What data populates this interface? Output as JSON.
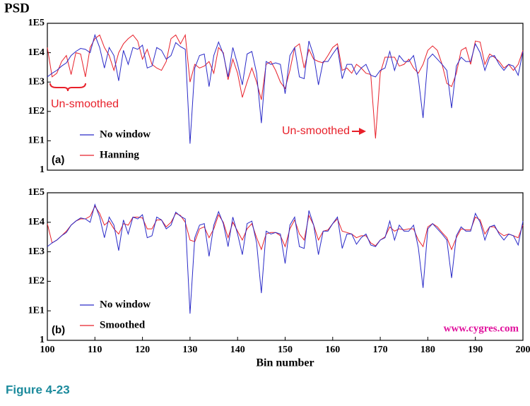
{
  "chart_data": [
    {
      "type": "line",
      "ylabel": "PSD",
      "panel_label": "(a)",
      "ylog": true,
      "legend": "lower left",
      "annotations": [
        "Un-smoothed",
        "Un-smoothed"
      ],
      "xlim": [
        100,
        200
      ],
      "ylim": [
        1,
        100000
      ],
      "yticks": [
        1,
        {
          "value": 10,
          "label": "1E1"
        },
        {
          "value": 100,
          "label": "1E2"
        },
        {
          "value": 1000,
          "label": "1E3"
        },
        {
          "value": 10000,
          "label": "1E4"
        },
        {
          "value": 100000,
          "label": "1E5"
        }
      ],
      "x": [
        100,
        101,
        102,
        103,
        104,
        105,
        106,
        107,
        108,
        109,
        110,
        111,
        112,
        113,
        114,
        115,
        116,
        117,
        118,
        119,
        120,
        121,
        122,
        123,
        124,
        125,
        126,
        127,
        128,
        129,
        130,
        131,
        132,
        133,
        134,
        135,
        136,
        137,
        138,
        139,
        140,
        141,
        142,
        143,
        144,
        145,
        146,
        147,
        148,
        149,
        150,
        151,
        152,
        153,
        154,
        155,
        156,
        157,
        158,
        159,
        160,
        161,
        162,
        163,
        164,
        165,
        166,
        167,
        168,
        169,
        170,
        171,
        172,
        173,
        174,
        175,
        176,
        177,
        178,
        179,
        180,
        181,
        182,
        183,
        184,
        185,
        186,
        187,
        188,
        189,
        190,
        191,
        192,
        193,
        194,
        195,
        196,
        197,
        198,
        199,
        200
      ],
      "series": [
        {
          "name": "No window",
          "color": "#2a2ac8",
          "values": [
            1500,
            2000,
            2500,
            3500,
            4500,
            8000,
            11000,
            14000,
            13000,
            10000,
            40000,
            15000,
            3000,
            15000,
            8000,
            1100,
            12000,
            4000,
            15000,
            13000,
            18000,
            3000,
            3500,
            15000,
            12000,
            6000,
            8000,
            22000,
            16000,
            13000,
            8,
            3000,
            8000,
            9000,
            700,
            8000,
            23000,
            9000,
            1500,
            15000,
            4000,
            800,
            9000,
            11000,
            2000,
            40,
            5000,
            4000,
            4500,
            4000,
            400,
            8000,
            15000,
            1500,
            1300,
            25000,
            8000,
            800,
            5000,
            5000,
            9000,
            15000,
            1300,
            4000,
            4000,
            1800,
            3000,
            4000,
            1700,
            1500,
            2500,
            3000,
            11000,
            2500,
            8000,
            5000,
            5000,
            8000,
            1400,
            60,
            6000,
            9000,
            6000,
            4000,
            2500,
            130,
            3500,
            7000,
            5000,
            5000,
            20000,
            10000,
            2500,
            7000,
            8000,
            4000,
            2500,
            4000,
            3500,
            1700,
            11000
          ]
        },
        {
          "name": "Hanning",
          "color": "#e8202a",
          "values": [
            15000,
            1500,
            2000,
            5000,
            8000,
            1800,
            10000,
            9000,
            1500,
            15000,
            30000,
            40000,
            15000,
            8000,
            2500,
            10000,
            20000,
            30000,
            40000,
            25000,
            6000,
            13000,
            4000,
            3000,
            2500,
            5000,
            30000,
            40000,
            20000,
            40000,
            1000,
            4000,
            3000,
            3500,
            5000,
            2000,
            15000,
            10000,
            1200,
            6000,
            2000,
            300,
            1000,
            3000,
            1000,
            250,
            4000,
            5000,
            2500,
            1000,
            600,
            2500,
            15000,
            20000,
            3000,
            13000,
            6000,
            5000,
            4500,
            8000,
            15000,
            20000,
            2500,
            3000,
            2000,
            4000,
            3000,
            2000,
            1800,
            12,
            2000,
            7000,
            7000,
            7000,
            3500,
            4000,
            6000,
            3000,
            2000,
            4000,
            12000,
            17000,
            12000,
            4000,
            900,
            700,
            2000,
            12000,
            15000,
            4000,
            25000,
            23000,
            4000,
            9000,
            7000,
            5000,
            3000,
            4000,
            2500,
            4000,
            12000
          ]
        }
      ]
    },
    {
      "type": "line",
      "xlabel": "Bin number",
      "panel_label": "(b)",
      "credit": "www.cygres.com",
      "ylog": true,
      "legend": "lower left",
      "xlim": [
        100,
        200
      ],
      "xticks": [
        100,
        110,
        120,
        130,
        140,
        150,
        160,
        170,
        180,
        190,
        200
      ],
      "ylim": [
        1,
        100000
      ],
      "yticks": [
        1,
        {
          "value": 10,
          "label": "1E1"
        },
        {
          "value": 100,
          "label": "1E2"
        },
        {
          "value": 1000,
          "label": "1E3"
        },
        {
          "value": 10000,
          "label": "1E4"
        },
        {
          "value": 100000,
          "label": "1E5"
        }
      ],
      "x": [
        100,
        101,
        102,
        103,
        104,
        105,
        106,
        107,
        108,
        109,
        110,
        111,
        112,
        113,
        114,
        115,
        116,
        117,
        118,
        119,
        120,
        121,
        122,
        123,
        124,
        125,
        126,
        127,
        128,
        129,
        130,
        131,
        132,
        133,
        134,
        135,
        136,
        137,
        138,
        139,
        140,
        141,
        142,
        143,
        144,
        145,
        146,
        147,
        148,
        149,
        150,
        151,
        152,
        153,
        154,
        155,
        156,
        157,
        158,
        159,
        160,
        161,
        162,
        163,
        164,
        165,
        166,
        167,
        168,
        169,
        170,
        171,
        172,
        173,
        174,
        175,
        176,
        177,
        178,
        179,
        180,
        181,
        182,
        183,
        184,
        185,
        186,
        187,
        188,
        189,
        190,
        191,
        192,
        193,
        194,
        195,
        196,
        197,
        198,
        199,
        200
      ],
      "series": [
        {
          "name": "No window",
          "color": "#2a2ac8",
          "values": [
            1500,
            2000,
            2500,
            3500,
            4500,
            8000,
            11000,
            14000,
            13000,
            10000,
            40000,
            15000,
            3000,
            15000,
            8000,
            1100,
            12000,
            4000,
            15000,
            13000,
            18000,
            3000,
            3500,
            15000,
            12000,
            6000,
            8000,
            22000,
            16000,
            13000,
            8,
            3000,
            8000,
            9000,
            700,
            8000,
            23000,
            9000,
            1500,
            15000,
            4000,
            800,
            9000,
            11000,
            2000,
            40,
            5000,
            4000,
            4500,
            4000,
            400,
            8000,
            15000,
            1500,
            1300,
            25000,
            8000,
            800,
            5000,
            5000,
            9000,
            15000,
            1300,
            4000,
            4000,
            1800,
            3000,
            4000,
            1700,
            1500,
            2500,
            3000,
            11000,
            2500,
            8000,
            5000,
            5000,
            8000,
            1400,
            60,
            6000,
            9000,
            6000,
            4000,
            2500,
            130,
            3500,
            7000,
            5000,
            5000,
            20000,
            10000,
            2500,
            7000,
            8000,
            4000,
            2500,
            4000,
            3500,
            1700,
            11000
          ]
        },
        {
          "name": "Smoothed",
          "color": "#e8202a",
          "values": [
            9000,
            2000,
            2500,
            3500,
            5000,
            8000,
            11000,
            13000,
            13000,
            16000,
            35000,
            20000,
            8000,
            11000,
            6000,
            4000,
            9000,
            8000,
            15000,
            15000,
            14000,
            6000,
            6000,
            12000,
            12000,
            7000,
            10000,
            20000,
            17000,
            10000,
            2500,
            2200,
            6000,
            7000,
            3000,
            6000,
            18000,
            10000,
            3000,
            10000,
            5000,
            2500,
            6000,
            9000,
            3000,
            1200,
            4000,
            4500,
            4500,
            3500,
            1500,
            6000,
            12000,
            4000,
            2500,
            17000,
            8000,
            2500,
            5000,
            5500,
            9000,
            13000,
            5000,
            4500,
            4000,
            3000,
            3500,
            3500,
            2000,
            1600,
            2500,
            3200,
            7000,
            5000,
            6000,
            5500,
            6000,
            6000,
            2500,
            1500,
            7000,
            9000,
            7000,
            4500,
            3000,
            1200,
            3000,
            6000,
            5500,
            5500,
            15000,
            12000,
            4000,
            7000,
            7000,
            4500,
            3500,
            4000,
            3500,
            3000,
            8000
          ]
        }
      ]
    }
  ],
  "caption": "Figure 4-23"
}
